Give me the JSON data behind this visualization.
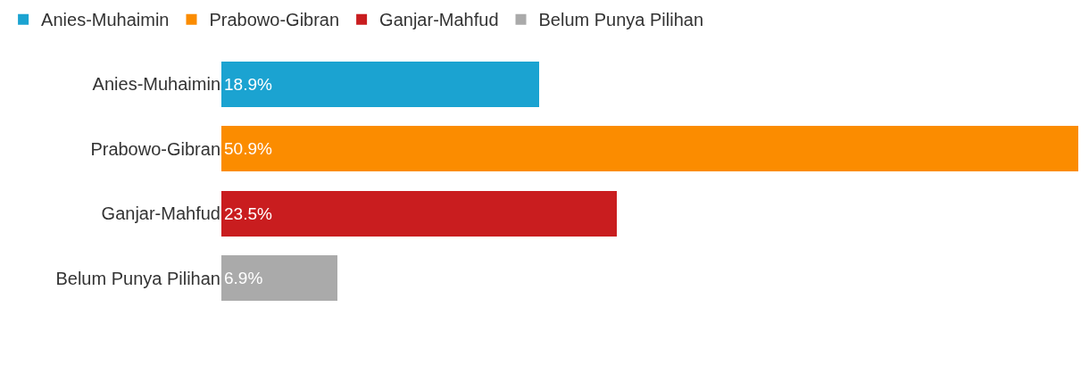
{
  "chart_data": {
    "type": "bar",
    "orientation": "horizontal",
    "stacked": true,
    "categories": [
      "Anies-Muhaimin",
      "Prabowo-Gibran",
      "Ganjar-Mahfud",
      "Belum Punya Pilihan"
    ],
    "series": [
      {
        "name": "Anies-Muhaimin",
        "color": "#1ba3d1",
        "values": [
          18.9,
          null,
          null,
          null
        ],
        "value_labels": [
          "18.9%",
          null,
          null,
          null
        ]
      },
      {
        "name": "Prabowo-Gibran",
        "color": "#fb8c00",
        "values": [
          null,
          50.9,
          null,
          null
        ],
        "value_labels": [
          null,
          "50.9%",
          null,
          null
        ]
      },
      {
        "name": "Ganjar-Mahfud",
        "color": "#c91d1f",
        "values": [
          null,
          null,
          23.5,
          null
        ],
        "value_labels": [
          null,
          null,
          "23.5%",
          null
        ]
      },
      {
        "name": "Belum Punya Pilihan",
        "color": "#aaaaaa",
        "values": [
          null,
          null,
          null,
          6.9
        ],
        "value_labels": [
          null,
          null,
          null,
          "6.9%"
        ]
      }
    ],
    "xlim": [
      0,
      50.9
    ],
    "tick_labels": "y",
    "legend": "top"
  }
}
